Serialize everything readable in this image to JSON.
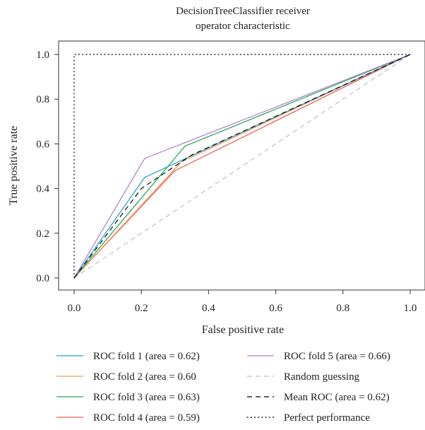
{
  "chart_data": {
    "type": "line",
    "title_lines": [
      "DecisionTreeClassifier receiver",
      "operator characteristic"
    ],
    "xlabel": "False positive rate",
    "ylabel": "True positive rate",
    "xlim": [
      0.0,
      1.0
    ],
    "ylim": [
      0.0,
      1.0
    ],
    "xticks": [
      0.0,
      0.2,
      0.4,
      0.6,
      0.8,
      1.0
    ],
    "yticks": [
      0.0,
      0.2,
      0.4,
      0.6,
      0.8,
      1.0
    ],
    "xtick_labels": [
      "0.0",
      "0.2",
      "0.4",
      "0.6",
      "0.8",
      "1.0"
    ],
    "ytick_labels": [
      "0.0",
      "0.2",
      "0.4",
      "0.6",
      "0.8",
      "1.0"
    ],
    "grid": false,
    "legend_placement": "bottom",
    "series": [
      {
        "name": "ROC fold 1 (area = 0.62)",
        "x": [
          0.0,
          0.21,
          1.0
        ],
        "y": [
          0.0,
          0.45,
          1.0
        ],
        "color": "#1f9fd6",
        "dash": "solid"
      },
      {
        "name": "ROC fold 2 (area = 0.60",
        "x": [
          0.0,
          0.32,
          1.0
        ],
        "y": [
          0.0,
          0.52,
          1.0
        ],
        "color": "#f49a4f",
        "dash": "solid"
      },
      {
        "name": "ROC fold 3 (area = 0.63)",
        "x": [
          0.0,
          0.33,
          1.0
        ],
        "y": [
          0.0,
          0.59,
          1.0
        ],
        "color": "#27a35a",
        "dash": "solid"
      },
      {
        "name": "ROC fold 4 (area = 0.59)",
        "x": [
          0.0,
          0.3,
          1.0
        ],
        "y": [
          0.0,
          0.48,
          1.0
        ],
        "color": "#ee5a5a",
        "dash": "solid"
      },
      {
        "name": "ROC fold 5 (area = 0.66)",
        "x": [
          0.0,
          0.21,
          1.0
        ],
        "y": [
          0.0,
          0.535,
          1.0
        ],
        "color": "#b07fc4",
        "dash": "solid"
      },
      {
        "name": "Random guessing",
        "x": [
          0.0,
          1.0
        ],
        "y": [
          0.0,
          1.0
        ],
        "color": "#bdbdbd",
        "dash": "dashed"
      },
      {
        "name": "Mean ROC (area = 0.62)",
        "x": [
          0.0,
          0.2,
          0.35,
          1.0
        ],
        "y": [
          0.0,
          0.4,
          0.55,
          1.0
        ],
        "color": "#000000",
        "dash": "dashed"
      },
      {
        "name": "Perfect performance",
        "x": [
          0.0,
          0.0,
          1.0
        ],
        "y": [
          0.0,
          1.0,
          1.0
        ],
        "color": "#000000",
        "dash": "dotted"
      }
    ]
  }
}
